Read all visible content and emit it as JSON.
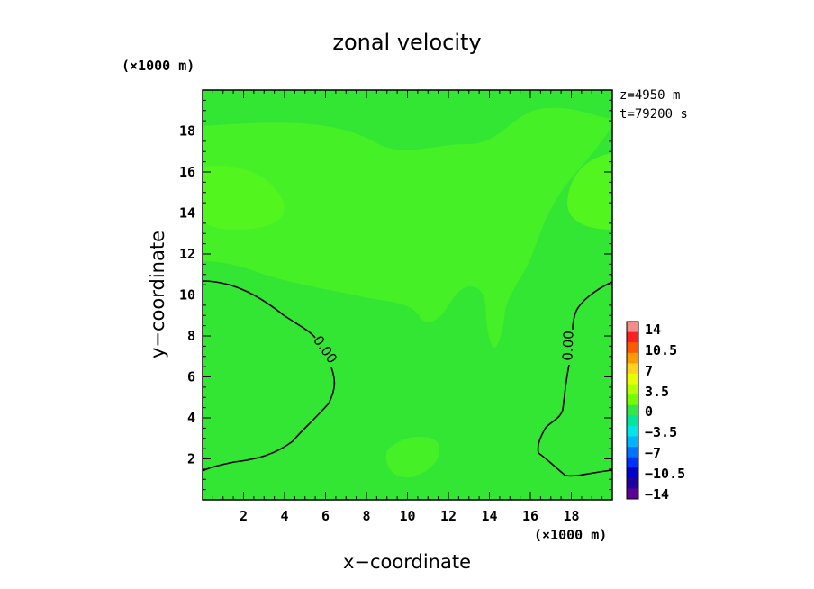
{
  "chart_data": {
    "type": "heatmap",
    "title": "zonal velocity",
    "xlabel": "x−coordinate",
    "ylabel": "y−coordinate",
    "x_unit": "(×1000 m)",
    "y_unit": "(×1000 m)",
    "xlim": [
      0,
      20
    ],
    "ylim": [
      0,
      20
    ],
    "x_ticks": [
      2,
      4,
      6,
      8,
      10,
      12,
      14,
      16,
      18
    ],
    "y_ticks": [
      2,
      4,
      6,
      8,
      10,
      12,
      14,
      16,
      18
    ],
    "x_tick_labels": [
      "2",
      "4",
      "6",
      "8",
      "10",
      "12",
      "14",
      "16",
      "18"
    ],
    "y_tick_labels": [
      "2",
      "4",
      "6",
      "8",
      "10",
      "12",
      "14",
      "16",
      "18"
    ],
    "info": [
      "z=4950  m",
      "t=79200  s"
    ],
    "contour_labels": [
      "0.00",
      "0.00"
    ],
    "colorbar": {
      "labels": [
        "14",
        "10.5",
        "7",
        "3.5",
        "0",
        "−3.5",
        "−7",
        "−10.5",
        "−14"
      ],
      "colors": [
        "#f58c8c",
        "#ff2020",
        "#ff5a00",
        "#ff9a00",
        "#ffd21e",
        "#e6ff00",
        "#b4ff00",
        "#73ff00",
        "#33e64a",
        "#00e69a",
        "#00e6e6",
        "#00b4ff",
        "#0073ff",
        "#0032ff",
        "#0000cd",
        "#1e00a0",
        "#5a0096"
      ]
    },
    "field_colors": {
      "base": "#33e633",
      "positive": "#45f026",
      "stronger": "#52f51e"
    }
  }
}
